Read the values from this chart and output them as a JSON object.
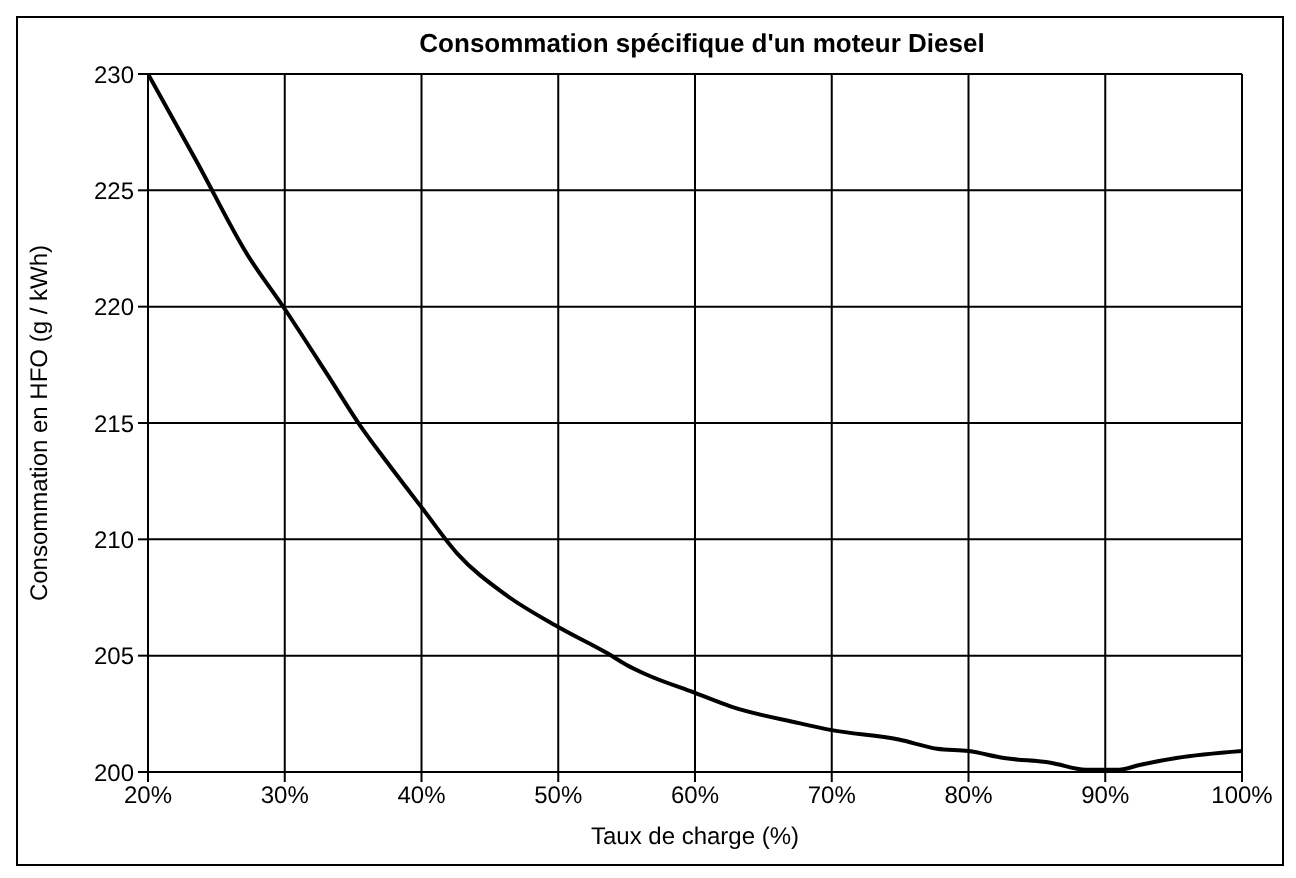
{
  "chart_data": {
    "type": "line",
    "title": "Consommation spécifique d'un moteur Diesel",
    "xlabel": "Taux de charge (%)",
    "ylabel": "Consommation en HFO (g / kWh)",
    "x": [
      20,
      23.6,
      27.2,
      30,
      33.1,
      35.5,
      37.5,
      40.1,
      42.6,
      46.2,
      50.1,
      53.6,
      55,
      56.4,
      60,
      62.7,
      67.6,
      70,
      74.9,
      77.7,
      80,
      82.6,
      86,
      88.6,
      91,
      92.5,
      95.2,
      100
    ],
    "series": [
      {
        "color": "#000000",
        "values": [
          230,
          226.2,
          222.3,
          219.9,
          217.1,
          214.9,
          213.3,
          211.3,
          209.4,
          207.6,
          206.2,
          205.1,
          204.6,
          204.2,
          203.4,
          202.8,
          202.1,
          201.8,
          201.4,
          201.0,
          200.9,
          200.6,
          200.4,
          200.1,
          200.1,
          200.3,
          200.6,
          200.9
        ]
      }
    ],
    "xlim": [
      20,
      100
    ],
    "xticks": [
      {
        "value": 20,
        "label": "20%"
      },
      {
        "value": 30,
        "label": "30%"
      },
      {
        "value": 40,
        "label": "40%"
      },
      {
        "value": 50,
        "label": "50%"
      },
      {
        "value": 60,
        "label": "60%"
      },
      {
        "value": 70,
        "label": "70%"
      },
      {
        "value": 80,
        "label": "80%"
      },
      {
        "value": 90,
        "label": "90%"
      },
      {
        "value": 100,
        "label": "100%"
      }
    ],
    "ylim": [
      200,
      230
    ],
    "yticks": [
      200,
      205,
      210,
      215,
      220,
      225,
      230
    ],
    "grid": true,
    "marker": "none",
    "line_style": "solid"
  }
}
